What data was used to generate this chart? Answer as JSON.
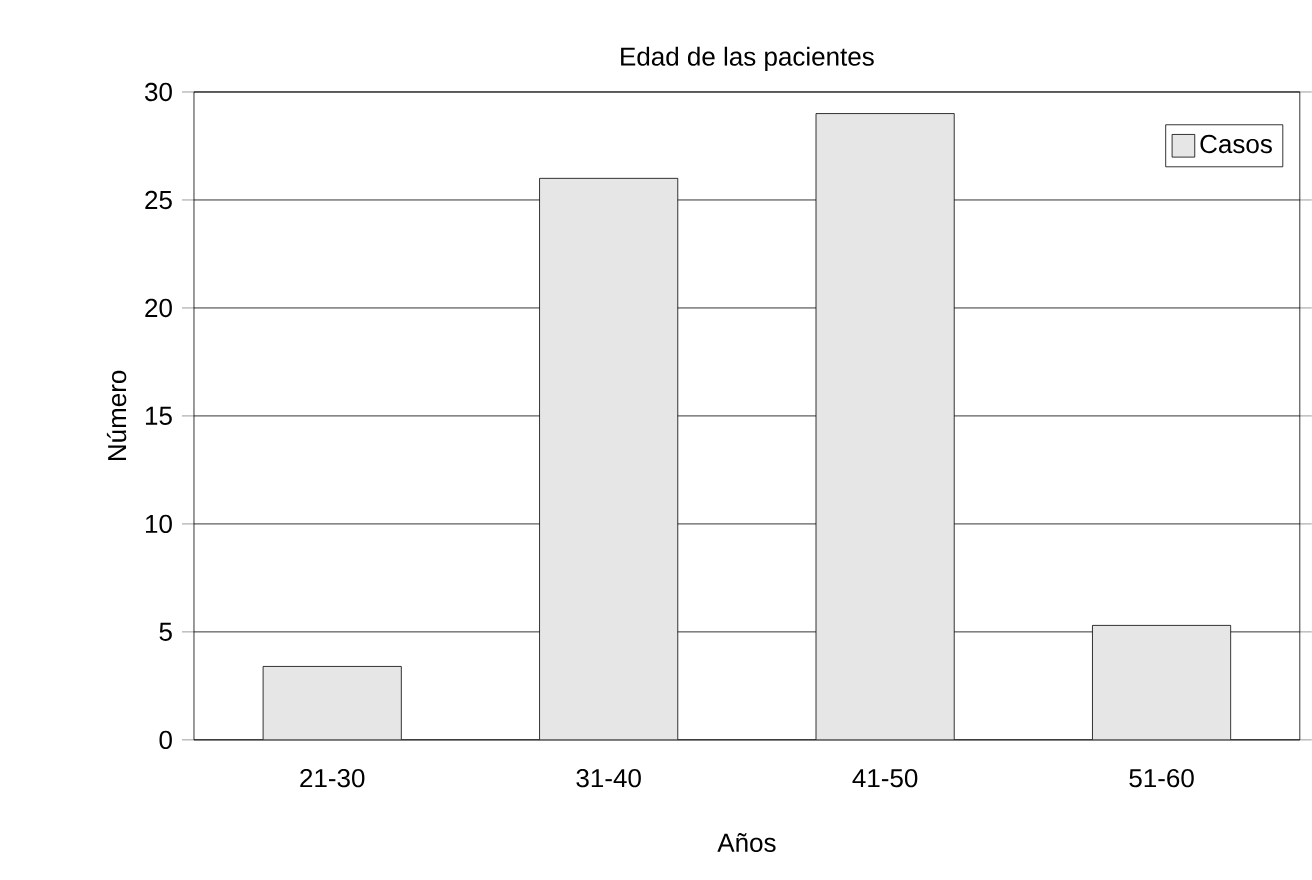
{
  "chart_data": {
    "type": "bar",
    "title": "Edad de las pacientes",
    "xlabel": "Años",
    "ylabel": "Número",
    "categories": [
      "21-30",
      "31-40",
      "41-50",
      "51-60"
    ],
    "series": [
      {
        "name": "Casos",
        "color": "#e6e6e6",
        "values": [
          3.4,
          26,
          29,
          5.3
        ]
      }
    ],
    "ylim": [
      0,
      30
    ],
    "yticks": [
      0,
      5,
      10,
      15,
      20,
      25,
      30
    ],
    "grid": "y",
    "legend": "top right"
  }
}
